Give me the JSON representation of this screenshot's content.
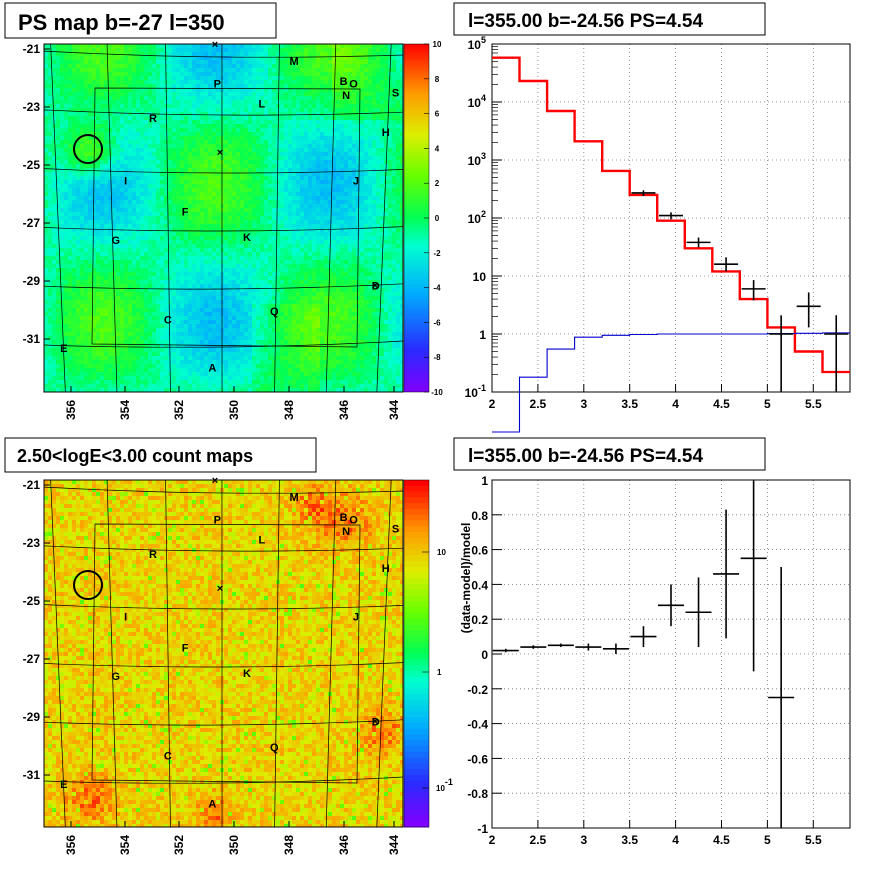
{
  "panels": {
    "tl": {
      "title": "PS map b=-27 l=350"
    },
    "tr": {
      "title": "l=355.00 b=-24.56 PS=4.54"
    },
    "bl": {
      "title": "2.50<logE<3.00 count maps"
    },
    "br": {
      "title": "l=355.00 b=-24.56 PS=4.54"
    }
  },
  "chart_data": [
    {
      "type": "heatmap",
      "title": "PS map b=-27 l=350",
      "x_ticks": [
        "356",
        "354",
        "352",
        "350",
        "348",
        "346",
        "344"
      ],
      "y_ticks": [
        "-21",
        "-23",
        "-25",
        "-27",
        "-29",
        "-31"
      ],
      "colorbar_ticks": [
        "10",
        "8",
        "6",
        "4",
        "2",
        "0",
        "-2",
        "-4",
        "-6",
        "-8",
        "-10"
      ],
      "zlim": [
        -10,
        10
      ],
      "source_labels": [
        {
          "text": "M",
          "l": 347.2,
          "b": -21.6
        },
        {
          "text": "B",
          "l": 345.2,
          "b": -22.3
        },
        {
          "text": "O",
          "l": 344.8,
          "b": -22.4
        },
        {
          "text": "N",
          "l": 345.1,
          "b": -22.8
        },
        {
          "text": "P",
          "l": 350.3,
          "b": -22.4
        },
        {
          "text": "S",
          "l": 343.1,
          "b": -22.7
        },
        {
          "text": "L",
          "l": 348.5,
          "b": -23.1
        },
        {
          "text": "R",
          "l": 352.9,
          "b": -23.6
        },
        {
          "text": "H",
          "l": 343.5,
          "b": -24.1
        },
        {
          "text": "J",
          "l": 344.7,
          "b": -25.8
        },
        {
          "text": "I",
          "l": 354.0,
          "b": -25.8
        },
        {
          "text": "F",
          "l": 351.6,
          "b": -26.9
        },
        {
          "text": "G",
          "l": 354.4,
          "b": -27.9
        },
        {
          "text": "K",
          "l": 349.1,
          "b": -27.8
        },
        {
          "text": "D",
          "l": 343.9,
          "b": -29.5
        },
        {
          "text": "C",
          "l": 352.3,
          "b": -30.7
        },
        {
          "text": "Q",
          "l": 348.0,
          "b": -30.4
        },
        {
          "text": "E",
          "l": 356.5,
          "b": -31.7
        },
        {
          "text": "A",
          "l": 350.5,
          "b": -32.4
        }
      ]
    },
    {
      "type": "line",
      "title": "l=355.00 b=-24.56 PS=4.54",
      "x_ticks": [
        "2",
        "2.5",
        "3",
        "3.5",
        "4",
        "4.5",
        "5",
        "5.5"
      ],
      "y_ticks": [
        "10^-1",
        "1",
        "10",
        "10^2",
        "10^3",
        "10^4",
        "10^5"
      ],
      "xlim": [
        2.0,
        5.9
      ],
      "ylim": [
        0.1,
        100000
      ],
      "ylog": true,
      "bin_edges": [
        2.0,
        2.3,
        2.6,
        2.9,
        3.2,
        3.5,
        3.8,
        4.1,
        4.4,
        4.7,
        5.0,
        5.3,
        5.6,
        5.9
      ],
      "series": [
        {
          "values": [
            58000,
            23000,
            7000,
            2100,
            650,
            250,
            90,
            30,
            12,
            4,
            1.3,
            0.5,
            0.22
          ]
        },
        {
          "values": [
            0.05,
            0.18,
            0.55,
            0.88,
            0.95,
            0.98,
            1.0,
            1.0,
            1.0,
            1.0,
            1.02,
            1.03,
            1.05
          ]
        }
      ],
      "data_points": [
        {
          "x": 3.65,
          "y": 270,
          "ylo": 240,
          "yhi": 300
        },
        {
          "x": 3.95,
          "y": 110,
          "ylo": 95,
          "yhi": 125
        },
        {
          "x": 4.25,
          "y": 38,
          "ylo": 31,
          "yhi": 46
        },
        {
          "x": 4.55,
          "y": 16,
          "ylo": 12,
          "yhi": 21
        },
        {
          "x": 4.85,
          "y": 6,
          "ylo": 3.8,
          "yhi": 8.5
        },
        {
          "x": 5.15,
          "y": 1.0,
          "ylo": 0.1,
          "yhi": 2.1
        },
        {
          "x": 5.45,
          "y": 3,
          "ylo": 1.3,
          "yhi": 5.2
        },
        {
          "x": 5.75,
          "y": 1.0,
          "ylo": 0.1,
          "yhi": 2.1
        }
      ]
    },
    {
      "type": "heatmap",
      "title": "2.50<logE<3.00 count maps",
      "x_ticks": [
        "356",
        "354",
        "352",
        "350",
        "348",
        "346",
        "344"
      ],
      "y_ticks": [
        "-21",
        "-23",
        "-25",
        "-27",
        "-29",
        "-31"
      ],
      "colorbar_ticks": [
        "10",
        "1",
        "10^-1"
      ],
      "zlog": true,
      "source_labels": [
        {
          "text": "M",
          "l": 347.2,
          "b": -21.6
        },
        {
          "text": "B",
          "l": 345.2,
          "b": -22.3
        },
        {
          "text": "O",
          "l": 344.8,
          "b": -22.4
        },
        {
          "text": "N",
          "l": 345.1,
          "b": -22.8
        },
        {
          "text": "P",
          "l": 350.3,
          "b": -22.4
        },
        {
          "text": "S",
          "l": 343.1,
          "b": -22.7
        },
        {
          "text": "L",
          "l": 348.5,
          "b": -23.1
        },
        {
          "text": "R",
          "l": 352.9,
          "b": -23.6
        },
        {
          "text": "H",
          "l": 343.5,
          "b": -24.1
        },
        {
          "text": "J",
          "l": 344.7,
          "b": -25.8
        },
        {
          "text": "I",
          "l": 354.0,
          "b": -25.8
        },
        {
          "text": "F",
          "l": 351.6,
          "b": -26.9
        },
        {
          "text": "G",
          "l": 354.4,
          "b": -27.9
        },
        {
          "text": "K",
          "l": 349.1,
          "b": -27.8
        },
        {
          "text": "D",
          "l": 343.9,
          "b": -29.5
        },
        {
          "text": "C",
          "l": 352.3,
          "b": -30.7
        },
        {
          "text": "Q",
          "l": 348.0,
          "b": -30.4
        },
        {
          "text": "E",
          "l": 356.5,
          "b": -31.7
        },
        {
          "text": "A",
          "l": 350.5,
          "b": -32.4
        }
      ]
    },
    {
      "type": "scatter",
      "title": "l=355.00 b=-24.56 PS=4.54",
      "ylabel": "(data-model)/model",
      "x_ticks": [
        "2",
        "2.5",
        "3",
        "3.5",
        "4",
        "4.5",
        "5",
        "5.5"
      ],
      "y_ticks": [
        "1",
        "0.8",
        "0.6",
        "0.4",
        "0.2",
        "0",
        "-0.2",
        "-0.4",
        "-0.6",
        "-0.8",
        "-1"
      ],
      "xlim": [
        2.0,
        5.9
      ],
      "ylim": [
        -1,
        1
      ],
      "points": [
        {
          "x": 2.15,
          "y": 0.02,
          "err": 0.01
        },
        {
          "x": 2.45,
          "y": 0.04,
          "err": 0.01
        },
        {
          "x": 2.75,
          "y": 0.05,
          "err": 0.01
        },
        {
          "x": 3.05,
          "y": 0.04,
          "err": 0.02
        },
        {
          "x": 3.35,
          "y": 0.03,
          "err": 0.03
        },
        {
          "x": 3.65,
          "y": 0.1,
          "err": 0.06
        },
        {
          "x": 3.95,
          "y": 0.28,
          "err": 0.12
        },
        {
          "x": 4.25,
          "y": 0.24,
          "err": 0.2
        },
        {
          "x": 4.55,
          "y": 0.46,
          "err": 0.37
        },
        {
          "x": 4.85,
          "y": 0.55,
          "err": 0.65
        },
        {
          "x": 5.15,
          "y": -0.25,
          "err": 0.75
        }
      ]
    }
  ]
}
